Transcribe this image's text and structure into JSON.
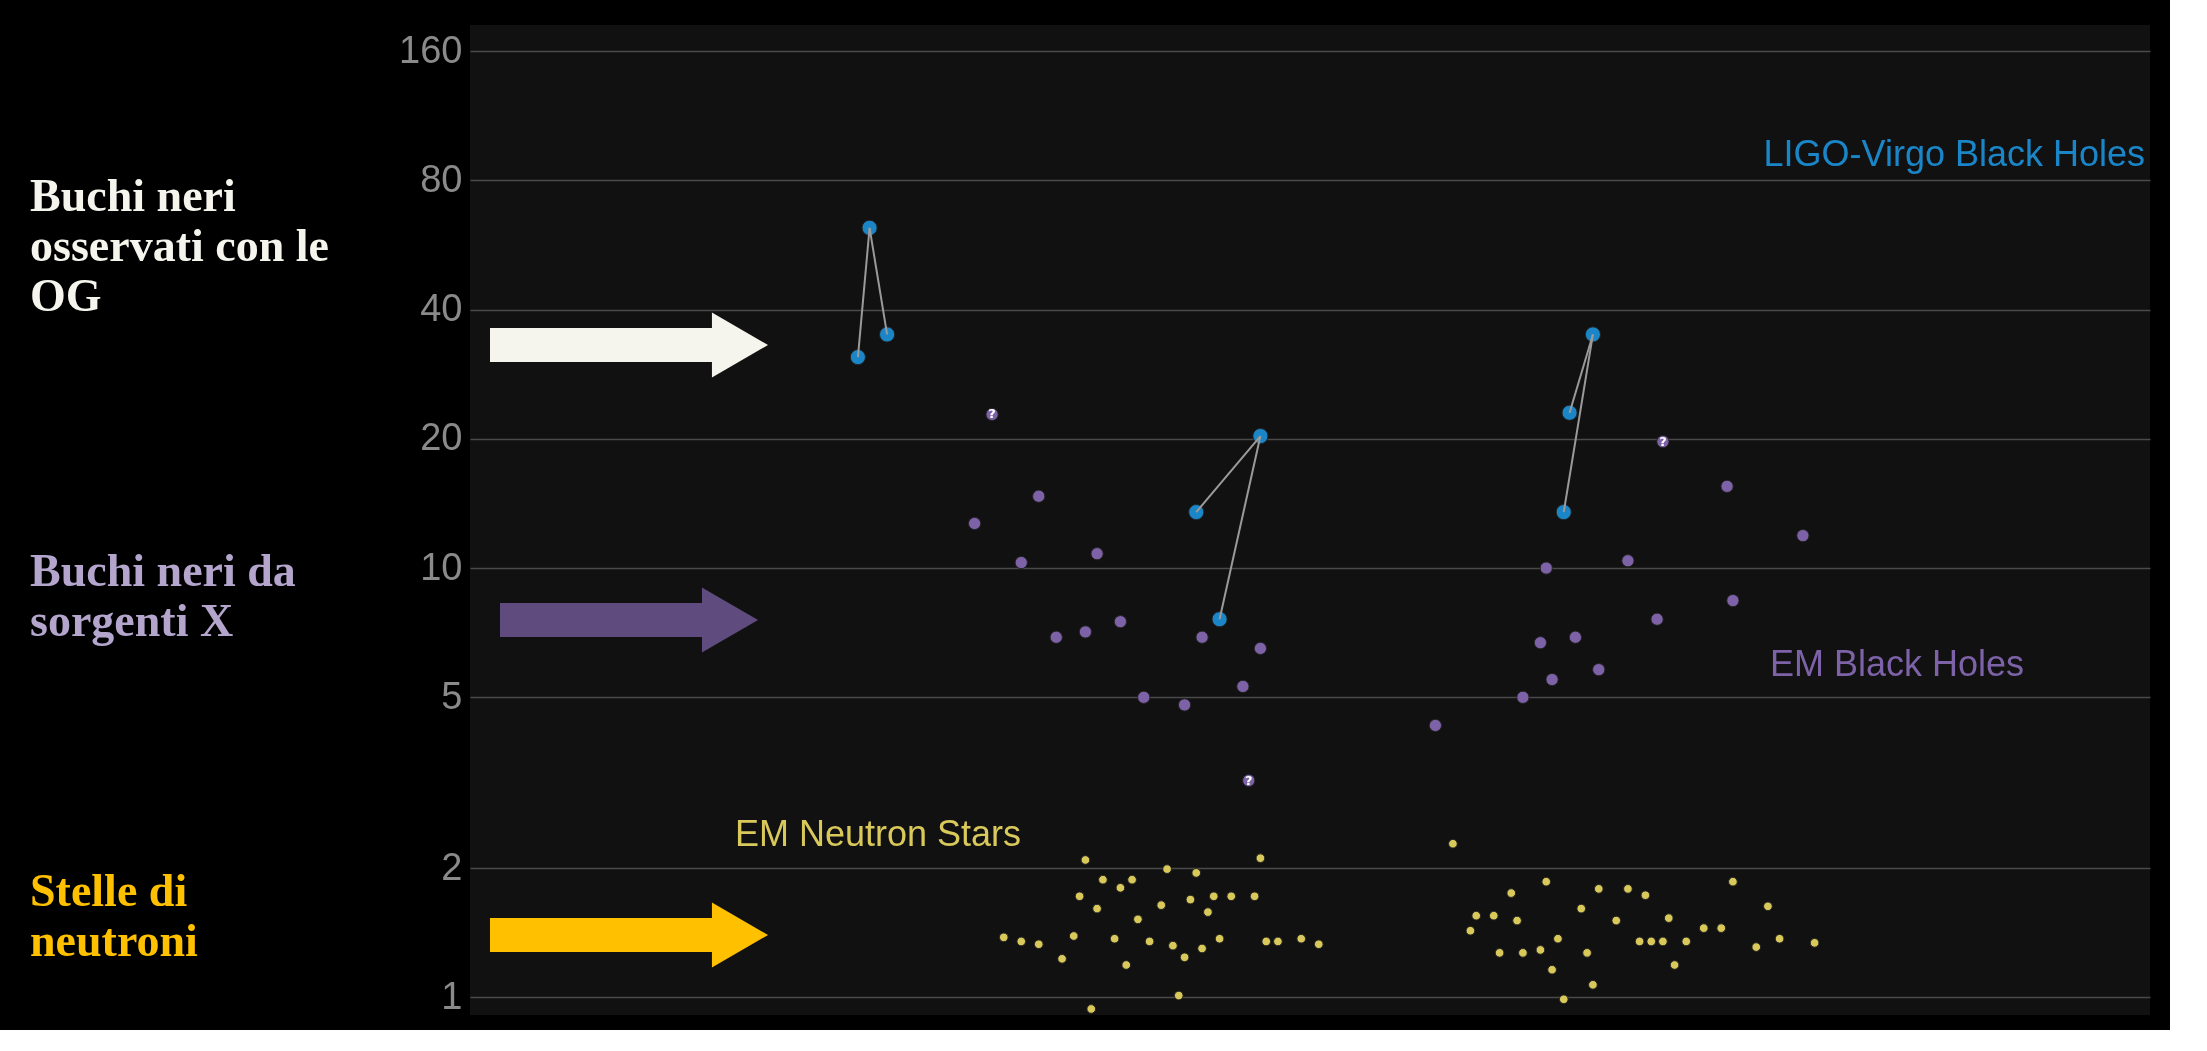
{
  "chart_data": {
    "type": "scatter",
    "categories": [
      null,
      null,
      null,
      null,
      null,
      null,
      null,
      null,
      null,
      null,
      null,
      null,
      null,
      null,
      null,
      null,
      null,
      null,
      null,
      null,
      null,
      null,
      null,
      null,
      null,
      null,
      null,
      null,
      null,
      null,
      null,
      null,
      null,
      null,
      null,
      null,
      null,
      null,
      null,
      null,
      null,
      null,
      null,
      null,
      null,
      null,
      null,
      null,
      null,
      null,
      null,
      null,
      null,
      null,
      null,
      null,
      null,
      null,
      null,
      null,
      null,
      null,
      null,
      null,
      null,
      null,
      null,
      null,
      null,
      null,
      null,
      null,
      null,
      null,
      null,
      null,
      null,
      null,
      null,
      null,
      null,
      null,
      null,
      null,
      null,
      null,
      null,
      null,
      null,
      null,
      null,
      null,
      null,
      null,
      null,
      null,
      null,
      null,
      null,
      null,
      null,
      null,
      null,
      null,
      null,
      null,
      null,
      null,
      null,
      null,
      null,
      null,
      null,
      null,
      null,
      null,
      null,
      null,
      null,
      null,
      null,
      null,
      null,
      null,
      null,
      null,
      null,
      null,
      null,
      null,
      null,
      null,
      null,
      null,
      null,
      null,
      null,
      null,
      null,
      null,
      null,
      null,
      null,
      null,
      null,
      null,
      null,
      null,
      null,
      null,
      null,
      null,
      null,
      null,
      null,
      null,
      null,
      null,
      null,
      null,
      null,
      null,
      null,
      null,
      null,
      null,
      null,
      null,
      null,
      null,
      null,
      null,
      null,
      null,
      null,
      null,
      null,
      null,
      null,
      null,
      null,
      null,
      null,
      null,
      null,
      null,
      null,
      null,
      null,
      null,
      null,
      null,
      null,
      null,
      null,
      null,
      null,
      null,
      null,
      null,
      null,
      null,
      null,
      null,
      null,
      null,
      null,
      null,
      null,
      null,
      null,
      null,
      null,
      null,
      null,
      null,
      null,
      null,
      null,
      null,
      null,
      null,
      null,
      null,
      null,
      null,
      null,
      null,
      null,
      null,
      null,
      null,
      null,
      null,
      null,
      null,
      null,
      null,
      null,
      null,
      null,
      null,
      null,
      null,
      null,
      null,
      null,
      null,
      null,
      null,
      null,
      null,
      null,
      null,
      null,
      null,
      null,
      null,
      null,
      null,
      null,
      null,
      null,
      null,
      null,
      null,
      null,
      null,
      null,
      null,
      null,
      null,
      null,
      null,
      null,
      null,
      null,
      null,
      null,
      null,
      null,
      null,
      null,
      null,
      null,
      null,
      null,
      null
    ],
    "ylim": [
      0.91,
      184
    ],
    "yticks": [
      1,
      2,
      5,
      10,
      20,
      40,
      80,
      160
    ],
    "log": "y",
    "grid": "y",
    "tick_labels": "y",
    "marker": "circle",
    "series": [
      {
        "name": "LIGO-Virgo Black Holes",
        "color": "#1a86c8",
        "values": [
          null,
          null,
          null,
          null,
          null,
          null,
          null,
          null,
          null,
          null,
          null,
          null,
          null,
          null,
          null,
          null,
          null,
          null,
          null,
          null,
          null,
          null,
          null,
          null,
          null,
          null,
          null,
          null,
          null,
          null,
          null,
          null,
          null,
          null,
          null,
          null,
          null,
          null,
          null,
          null,
          null,
          null,
          null,
          null,
          null,
          null,
          null,
          null,
          null,
          null,
          null,
          null,
          null,
          null,
          null,
          null,
          null,
          null,
          null,
          null,
          null,
          null,
          null,
          null,
          null,
          null,
          31,
          null,
          62,
          null,
          null,
          35,
          null,
          null,
          null,
          null,
          null,
          null,
          null,
          null,
          null,
          null,
          null,
          null,
          null,
          null,
          null,
          null,
          null,
          null,
          null,
          null,
          null,
          null,
          null,
          null,
          null,
          null,
          null,
          null,
          null,
          null,
          null,
          null,
          null,
          null,
          null,
          null,
          null,
          null,
          null,
          null,
          null,
          null,
          null,
          null,
          null,
          null,
          null,
          null,
          null,
          null,
          null,
          null,
          13.5,
          null,
          null,
          null,
          7.6,
          null,
          null,
          null,
          null,
          null,
          null,
          20.3,
          null,
          null,
          null,
          null,
          null,
          null,
          null,
          null,
          null,
          null,
          null,
          null,
          null,
          null,
          null,
          null,
          null,
          null,
          null,
          null,
          null,
          null,
          null,
          null,
          null,
          null,
          null,
          null,
          null,
          null,
          null,
          null,
          null,
          null,
          null,
          null,
          null,
          null,
          null,
          null,
          null,
          null,
          null,
          null,
          null,
          null,
          null,
          null,
          null,
          null,
          null,
          13.5,
          23,
          null,
          null,
          null,
          35,
          null,
          null,
          null,
          null,
          null,
          null,
          null,
          null,
          null,
          null,
          null,
          null,
          null,
          null,
          null,
          null,
          null,
          null,
          null,
          null,
          null,
          null,
          null,
          null,
          null,
          null,
          null,
          null,
          null,
          null,
          null,
          null,
          null,
          null,
          null,
          null,
          null,
          null,
          null,
          null,
          null,
          null,
          null,
          null,
          null,
          null,
          null,
          null,
          null,
          null,
          null,
          null,
          null,
          null,
          null,
          null,
          null,
          null,
          null,
          null,
          null,
          null,
          null,
          null,
          null,
          null,
          null,
          null,
          null,
          null,
          null,
          null,
          null,
          null,
          null,
          null,
          null,
          null,
          null,
          null,
          null,
          null,
          null,
          null,
          null,
          null,
          null,
          null,
          null,
          null,
          null,
          null,
          null,
          null,
          null
        ]
      },
      {
        "name": "EM Black Holes",
        "color": "#7d62a8",
        "values": [
          null,
          null,
          null,
          null,
          null,
          null,
          null,
          null,
          null,
          null,
          null,
          null,
          null,
          null,
          null,
          null,
          null,
          null,
          null,
          null,
          null,
          null,
          null,
          null,
          null,
          null,
          null,
          null,
          null,
          null,
          null,
          null,
          null,
          null,
          null,
          null,
          null,
          null,
          null,
          null,
          null,
          null,
          null,
          null,
          null,
          null,
          null,
          null,
          null,
          null,
          null,
          null,
          null,
          null,
          null,
          null,
          null,
          null,
          null,
          null,
          null,
          null,
          null,
          null,
          null,
          null,
          null,
          null,
          null,
          null,
          null,
          null,
          null,
          null,
          null,
          null,
          null,
          null,
          null,
          null,
          null,
          null,
          null,
          null,
          null,
          null,
          12.7,
          null,
          null,
          22.8,
          null,
          null,
          null,
          null,
          10.3,
          null,
          null,
          14.7,
          null,
          null,
          6.9,
          null,
          null,
          null,
          null,
          7.1,
          null,
          10.8,
          null,
          null,
          null,
          7.5,
          null,
          null,
          null,
          5.0,
          null,
          null,
          null,
          null,
          null,
          null,
          4.8,
          null,
          null,
          6.9,
          null,
          null,
          null,
          null,
          null,
          null,
          5.3,
          3.2,
          null,
          6.5,
          null,
          null,
          null,
          null,
          null,
          null,
          null,
          null,
          null,
          null,
          null,
          null,
          null,
          null,
          null,
          null,
          null,
          null,
          null,
          null,
          null,
          null,
          null,
          null,
          null,
          null,
          null,
          null,
          null,
          4.3,
          null,
          null,
          null,
          null,
          null,
          null,
          null,
          null,
          null,
          null,
          null,
          null,
          null,
          null,
          5.0,
          null,
          null,
          6.7,
          10.0,
          5.5,
          null,
          null,
          null,
          6.9,
          null,
          null,
          null,
          5.8,
          null,
          null,
          null,
          null,
          10.4,
          null,
          null,
          null,
          null,
          7.6,
          19.7,
          null,
          null,
          null,
          null,
          null,
          null,
          null,
          null,
          null,
          null,
          15.5,
          8.4,
          null,
          null,
          null,
          null,
          null,
          null,
          null,
          null,
          null,
          null,
          null,
          11.9,
          null,
          null,
          null,
          null,
          null,
          null,
          null,
          null,
          null,
          null,
          null,
          null,
          null,
          null,
          null,
          null,
          null,
          null,
          null,
          null,
          null,
          null,
          null,
          null,
          null,
          null,
          null,
          null,
          null,
          null,
          null,
          null,
          null,
          null,
          null,
          null,
          null,
          null,
          null,
          null,
          null,
          null,
          null,
          null,
          null,
          null,
          null,
          null,
          null,
          null,
          null,
          null,
          null,
          null,
          null,
          null,
          null,
          null,
          null
        ]
      },
      {
        "name": "EM Neutron Stars",
        "color": "#d9c85a",
        "values": [
          null,
          null,
          null,
          null,
          null,
          null,
          null,
          null,
          null,
          null,
          null,
          null,
          null,
          null,
          null,
          null,
          null,
          null,
          null,
          null,
          null,
          null,
          null,
          null,
          null,
          null,
          null,
          null,
          null,
          null,
          null,
          null,
          null,
          null,
          null,
          null,
          null,
          null,
          null,
          null,
          null,
          null,
          null,
          null,
          null,
          null,
          null,
          null,
          null,
          null,
          null,
          null,
          null,
          null,
          null,
          null,
          null,
          null,
          null,
          null,
          null,
          null,
          null,
          null,
          null,
          null,
          null,
          null,
          null,
          null,
          null,
          null,
          null,
          null,
          null,
          null,
          null,
          null,
          null,
          null,
          null,
          null,
          null,
          null,
          null,
          null,
          null,
          null,
          null,
          null,
          null,
          1.38,
          null,
          null,
          1.35,
          null,
          null,
          1.33,
          null,
          null,
          null,
          1.23,
          null,
          1.39,
          1.72,
          2.09,
          0.94,
          1.61,
          1.88,
          null,
          1.37,
          1.8,
          1.19,
          1.88,
          1.52,
          null,
          1.35,
          null,
          1.64,
          1.99,
          1.32,
          1.01,
          1.24,
          1.69,
          1.95,
          1.3,
          1.58,
          1.72,
          1.37,
          null,
          1.72,
          null,
          null,
          null,
          1.72,
          2.11,
          1.35,
          null,
          1.35,
          null,
          null,
          null,
          1.37,
          null,
          null,
          1.33,
          null,
          null,
          null,
          null,
          null,
          null,
          null,
          null,
          null,
          null,
          null,
          null,
          null,
          null,
          null,
          null,
          null,
          null,
          null,
          null,
          null,
          null,
          2.28,
          null,
          null,
          1.43,
          1.55,
          null,
          null,
          1.55,
          1.27,
          null,
          1.75,
          1.51,
          1.27,
          null,
          null,
          1.29,
          1.86,
          1.16,
          1.37,
          0.99,
          null,
          null,
          1.61,
          1.27,
          1.07,
          1.79,
          null,
          null,
          1.51,
          null,
          1.79,
          null,
          1.35,
          1.73,
          1.35,
          null,
          1.35,
          1.53,
          1.19,
          null,
          1.35,
          null,
          null,
          1.45,
          null,
          null,
          1.45,
          null,
          1.86,
          null,
          null,
          null,
          1.31,
          null,
          1.63,
          null,
          1.37,
          null,
          null,
          null,
          null,
          null,
          1.34,
          null,
          null,
          null,
          null,
          null,
          null,
          null,
          null,
          null,
          null,
          null,
          null,
          null,
          null,
          null,
          null,
          null,
          null,
          null,
          null,
          null,
          null,
          null,
          null,
          null,
          null,
          null,
          null,
          null,
          null,
          null,
          null,
          null,
          null,
          null,
          null,
          null,
          null,
          null,
          null,
          null,
          null,
          null,
          null,
          null,
          null,
          null,
          null,
          null,
          null,
          null,
          null,
          null,
          null,
          null,
          null,
          null
        ]
      }
    ],
    "annotations": [
      "Buchi neri osservati con le OG",
      "Buchi neri da sorgenti X",
      "Stelle di neutroni",
      {
        "text": "?",
        "y": 22.8
      },
      {
        "text": "?",
        "y": 3.2
      },
      {
        "text": "?",
        "y": 19.7
      }
    ]
  }
}
